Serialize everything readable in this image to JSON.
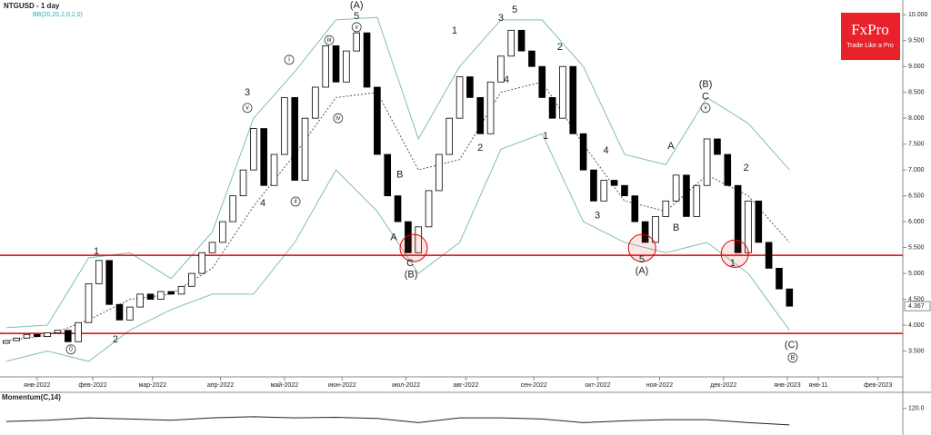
{
  "chart_data": {
    "type": "candlestick",
    "title": "NTGUSD - 1 day",
    "subtitle": "BB(20,20,2,0,2,0)",
    "brand": {
      "name": "FxPro",
      "tagline": "Trade Like a Pro",
      "color": "#e8212b"
    },
    "x": [
      -15,
      -10,
      -5,
      0,
      5,
      10,
      15,
      20,
      25,
      30,
      35,
      40,
      45,
      50,
      55,
      60,
      65,
      70,
      75,
      80,
      85,
      90,
      95,
      100,
      105,
      110,
      115,
      120,
      125,
      130,
      135,
      140,
      145,
      150,
      155,
      160,
      165,
      170,
      175,
      180,
      185,
      190,
      195,
      200,
      205,
      210,
      215,
      220,
      225,
      230,
      235,
      240,
      245,
      250,
      255,
      260,
      265,
      270,
      275,
      280,
      285,
      290,
      295,
      300,
      305,
      310,
      315,
      320,
      325,
      330,
      335,
      340,
      345,
      350,
      355,
      360,
      365
    ],
    "open": [
      3.65,
      3.7,
      3.75,
      3.82,
      3.78,
      3.85,
      3.9,
      3.68,
      4.05,
      4.8,
      5.25,
      4.4,
      4.1,
      4.35,
      4.6,
      4.5,
      4.65,
      4.6,
      4.75,
      5.0,
      5.4,
      5.6,
      6.0,
      6.5,
      7.0,
      7.8,
      6.7,
      7.3,
      8.4,
      6.8,
      8.0,
      8.6,
      9.4,
      8.7,
      9.3,
      9.65,
      8.6,
      7.3,
      6.5,
      6.0,
      5.4,
      5.9,
      6.6,
      7.3,
      8.0,
      8.8,
      8.4,
      7.7,
      8.7,
      9.2,
      9.7,
      9.3,
      9.0,
      8.4,
      8.0,
      9.0,
      7.7,
      7.0,
      6.4,
      6.8,
      6.7,
      6.5,
      6.0,
      5.6,
      6.1,
      6.4,
      6.9,
      6.1,
      6.7,
      7.6,
      7.3,
      6.7,
      5.4,
      6.4,
      5.6,
      5.1,
      4.7
    ],
    "close": [
      3.7,
      3.75,
      3.82,
      3.78,
      3.85,
      3.9,
      3.68,
      4.05,
      4.8,
      5.25,
      4.4,
      4.1,
      4.35,
      4.6,
      4.5,
      4.65,
      4.6,
      4.75,
      5.0,
      5.4,
      5.6,
      6.0,
      6.5,
      7.0,
      7.8,
      6.7,
      7.3,
      8.4,
      6.8,
      8.0,
      8.6,
      9.4,
      8.7,
      9.3,
      9.65,
      8.6,
      7.3,
      6.5,
      6.0,
      5.4,
      5.9,
      6.6,
      7.3,
      8.0,
      8.8,
      8.4,
      7.7,
      8.7,
      9.2,
      9.7,
      9.3,
      9.0,
      8.4,
      8.0,
      9.0,
      7.7,
      7.0,
      6.4,
      6.8,
      6.7,
      6.5,
      6.0,
      5.6,
      6.1,
      6.4,
      6.9,
      6.1,
      6.7,
      7.6,
      7.3,
      6.7,
      5.4,
      6.4,
      5.6,
      5.1,
      4.7,
      4.367
    ],
    "last_label": "4.367",
    "bands": {
      "x": [
        -15,
        5,
        25,
        45,
        65,
        85,
        105,
        125,
        145,
        165,
        185,
        205,
        225,
        245,
        265,
        285,
        305,
        325,
        345,
        365
      ],
      "upper": [
        3.95,
        4.0,
        5.3,
        5.4,
        4.9,
        5.8,
        8.0,
        8.9,
        9.9,
        9.95,
        7.6,
        9.0,
        9.9,
        9.9,
        9.0,
        7.3,
        7.1,
        8.4,
        7.9,
        7.0
      ],
      "lower": [
        3.3,
        3.5,
        3.3,
        3.9,
        4.3,
        4.6,
        4.6,
        5.6,
        7.0,
        6.2,
        5.0,
        5.6,
        7.4,
        7.7,
        6.0,
        5.6,
        5.4,
        5.6,
        5.0,
        3.9
      ],
      "middle": [
        3.7,
        3.8,
        4.1,
        4.5,
        4.6,
        5.1,
        6.3,
        7.3,
        8.4,
        8.5,
        7.0,
        7.2,
        8.5,
        8.7,
        7.5,
        6.4,
        6.2,
        6.9,
        6.5,
        5.6
      ],
      "color": "#7fc0b0"
    },
    "levels": [
      5.35,
      3.84
    ],
    "level_color": "#e00000",
    "highlights": [
      {
        "x": 182.7,
        "price": 5.49
      },
      {
        "x": 293.5,
        "price": 5.49
      },
      {
        "x": 338.5,
        "price": 5.38
      }
    ],
    "xlim": [
      -18,
      420
    ],
    "ylim": [
      3.0,
      10.25
    ],
    "yticks": [
      {
        "value": 10,
        "label": "10.000"
      },
      {
        "value": 9.5,
        "label": "9.500"
      },
      {
        "value": 9,
        "label": "9.000"
      },
      {
        "value": 8.5,
        "label": "8.500"
      },
      {
        "value": 8,
        "label": "8.000"
      },
      {
        "value": 7.5,
        "label": "7.500"
      },
      {
        "value": 7,
        "label": "7.000"
      },
      {
        "value": 6.5,
        "label": "6.500"
      },
      {
        "value": 6,
        "label": "6.000"
      },
      {
        "value": 5.5,
        "label": "5.500"
      },
      {
        "value": 5,
        "label": "5.000"
      },
      {
        "value": 4.5,
        "label": "4.500"
      },
      {
        "value": 4,
        "label": "4.000"
      },
      {
        "value": 3.5,
        "label": "3.500"
      }
    ],
    "xticks": [
      {
        "value": 0,
        "label": "янв-2022"
      },
      {
        "value": 27,
        "label": "фев-2022"
      },
      {
        "value": 56,
        "label": "мар-2022"
      },
      {
        "value": 89,
        "label": "апр-2022"
      },
      {
        "value": 120,
        "label": "май-2022"
      },
      {
        "value": 148,
        "label": "июн-2022"
      },
      {
        "value": 179,
        "label": "июл-2022"
      },
      {
        "value": 208,
        "label": "авг-2022"
      },
      {
        "value": 241,
        "label": "сен-2022"
      },
      {
        "value": 272,
        "label": "окт-2022"
      },
      {
        "value": 302,
        "label": "ноя-2022"
      },
      {
        "value": 333,
        "label": "дек-2022"
      },
      {
        "value": 364,
        "label": "янв-2023"
      },
      {
        "value": 379,
        "label": "янв-11"
      },
      {
        "value": 408,
        "label": "фев-2023"
      }
    ],
    "wave_labels": [
      {
        "text": "(A)",
        "x": 155,
        "price": 10.18
      },
      {
        "text": "5",
        "x": 155,
        "price": 9.97
      },
      {
        "text": "3",
        "x": 102,
        "price": 8.49
      },
      {
        "text": "4",
        "x": 109.5,
        "price": 6.35
      },
      {
        "text": "1",
        "x": 28.8,
        "price": 5.42
      },
      {
        "text": "2",
        "x": 38,
        "price": 3.72
      },
      {
        "text": "0",
        "x": 16.4,
        "price": 3.53,
        "circled": true
      },
      {
        "text": "A",
        "x": 173,
        "price": 5.69
      },
      {
        "text": "B",
        "x": 176,
        "price": 6.9
      },
      {
        "text": "C",
        "x": 181,
        "price": 5.19
      },
      {
        "text": "(B)",
        "x": 181.4,
        "price": 4.97
      },
      {
        "text": "1",
        "x": 202.5,
        "price": 9.69
      },
      {
        "text": "2",
        "x": 215,
        "price": 7.42
      },
      {
        "text": "3",
        "x": 225,
        "price": 9.93
      },
      {
        "text": "4",
        "x": 227.7,
        "price": 8.74
      },
      {
        "text": "5",
        "x": 231.7,
        "price": 10.09
      },
      {
        "text": "2",
        "x": 253.7,
        "price": 9.37
      },
      {
        "text": "1",
        "x": 246.7,
        "price": 7.65
      },
      {
        "text": "4",
        "x": 276,
        "price": 7.37
      },
      {
        "text": "3",
        "x": 271.8,
        "price": 6.11
      },
      {
        "text": "5",
        "x": 293.4,
        "price": 5.26
      },
      {
        "text": "(A)",
        "x": 293.4,
        "price": 5.04
      },
      {
        "text": "A",
        "x": 307.5,
        "price": 7.46
      },
      {
        "text": "B",
        "x": 310,
        "price": 5.88
      },
      {
        "text": "C",
        "x": 324.3,
        "price": 8.41
      },
      {
        "text": "(B)",
        "x": 324.3,
        "price": 8.65
      },
      {
        "text": "1",
        "x": 337.5,
        "price": 5.19
      },
      {
        "text": "2",
        "x": 344,
        "price": 7.04
      },
      {
        "text": "(C)",
        "x": 366,
        "price": 3.61
      },
      {
        "text": "B",
        "x": 366.6,
        "price": 3.37,
        "circled": true
      },
      {
        "text": "i",
        "x": 122.3,
        "price": 9.13,
        "circled": true
      },
      {
        "text": "ii",
        "x": 125.4,
        "price": 6.39,
        "circled": true
      },
      {
        "text": "iii",
        "x": 141.7,
        "price": 9.51,
        "circled": true
      },
      {
        "text": "iv",
        "x": 146,
        "price": 8.0,
        "circled": true
      },
      {
        "text": "v",
        "x": 155,
        "price": 9.76,
        "circled": true
      },
      {
        "text": "v",
        "x": 102,
        "price": 8.2,
        "circled": true
      },
      {
        "text": "v",
        "x": 324.3,
        "price": 8.2,
        "circled": true
      }
    ],
    "momentum": {
      "title": "Momentum(C,14)",
      "x": [
        -15,
        5,
        25,
        45,
        65,
        85,
        105,
        125,
        145,
        165,
        185,
        205,
        225,
        245,
        265,
        285,
        305,
        325,
        345,
        365
      ],
      "values": [
        98,
        100,
        104,
        102,
        100,
        104,
        106,
        104,
        105,
        103,
        96,
        104,
        104,
        102,
        96,
        99,
        101,
        101,
        96,
        92
      ],
      "ylim": [
        75,
        135
      ],
      "yticks": [
        {
          "value": 120,
          "label": "120.0"
        }
      ]
    }
  }
}
